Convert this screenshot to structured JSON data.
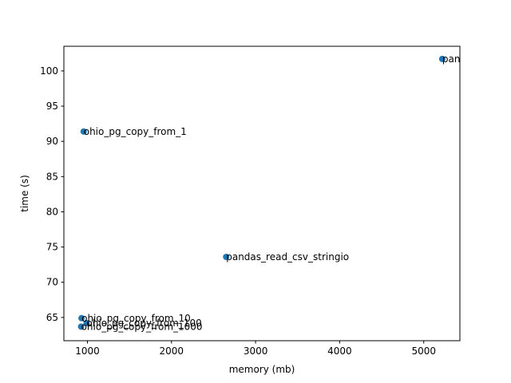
{
  "chart_data": {
    "type": "scatter",
    "title": "",
    "xlabel": "memory (mb)",
    "ylabel": "time (s)",
    "xlim": [
      720,
      5430
    ],
    "ylim": [
      61.7,
      103.5
    ],
    "xticks": [
      1000,
      2000,
      3000,
      4000,
      5000
    ],
    "yticks": [
      65,
      70,
      75,
      80,
      85,
      90,
      95,
      100
    ],
    "grid": false,
    "marker_color": "#1f77b4",
    "points": [
      {
        "label": "pandas_read_csv",
        "x": 5220,
        "y": 101.7
      },
      {
        "label": "ohio_pg_copy_from_1",
        "x": 955,
        "y": 91.4
      },
      {
        "label": "pandas_read_csv_stringio",
        "x": 2650,
        "y": 73.6
      },
      {
        "label": "ohio_pg_copy_from_10",
        "x": 930,
        "y": 64.9
      },
      {
        "label": "ohio_pg_copy_from_100",
        "x": 990,
        "y": 64.2
      },
      {
        "label": "ohio_pg_copy_from_1000",
        "x": 925,
        "y": 63.7
      }
    ]
  }
}
